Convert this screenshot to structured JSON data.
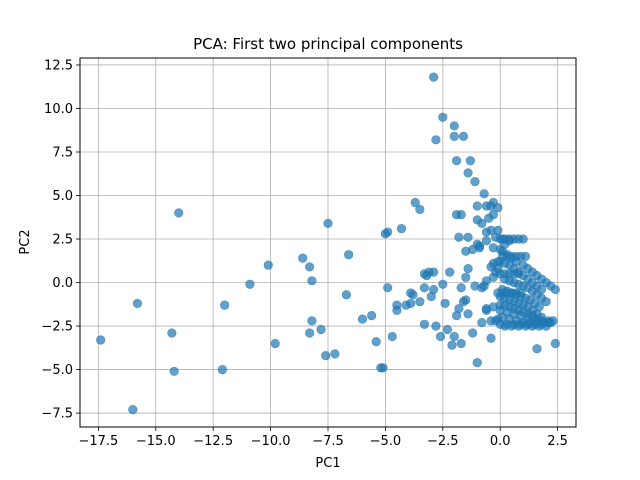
{
  "chart_data": {
    "type": "scatter",
    "title": "PCA: First two principal components",
    "xlabel": "PC1",
    "ylabel": "PC2",
    "xlim": [
      -18.3,
      3.3
    ],
    "ylim": [
      -8.3,
      12.9
    ],
    "xticks": [
      -17.5,
      -15.0,
      -12.5,
      -10.0,
      -7.5,
      -5.0,
      -2.5,
      0.0,
      2.5
    ],
    "xtick_labels": [
      "−17.5",
      "−15.0",
      "−12.5",
      "−10.0",
      "−7.5",
      "−5.0",
      "−2.5",
      "0.0",
      "2.5"
    ],
    "yticks": [
      -7.5,
      -5.0,
      -2.5,
      0.0,
      2.5,
      5.0,
      7.5,
      10.0,
      12.5
    ],
    "ytick_labels": [
      "−7.5",
      "−5.0",
      "−2.5",
      "0.0",
      "2.5",
      "5.0",
      "7.5",
      "10.0",
      "12.5"
    ],
    "grid": true,
    "marker_color": "#1f77b4",
    "marker_alpha": 0.7,
    "series": [
      {
        "x": [
          -17.4,
          -16.0,
          -15.8,
          -14.3,
          -14.2,
          -14.0,
          -12.0,
          -12.1,
          -10.9,
          -9.8,
          -10.1,
          -8.6,
          -8.3,
          -8.2,
          -8.3,
          -8.2,
          -7.8,
          -7.6,
          -7.5,
          -7.2,
          -6.7,
          -6.6,
          -6.0,
          -5.6,
          -5.4,
          -5.2,
          -5.1,
          -5.0,
          -4.9,
          -4.7,
          -4.5,
          -4.3,
          -4.1,
          -3.9,
          -3.7,
          -3.5,
          -3.3,
          -3.1,
          -3.0,
          -2.8,
          -2.6,
          -2.5,
          -2.3,
          -2.1,
          -2.0,
          -1.9,
          -1.7,
          -1.5,
          -1.4,
          -1.2,
          -1.0,
          -0.8,
          -0.6,
          -0.4,
          -0.2,
          -2.9,
          -2.5,
          -2.8,
          -3.3,
          -2.0,
          -2.0,
          -1.9,
          -1.6,
          -1.3,
          -1.8,
          -1.9,
          -1.7,
          -1.4,
          -1.4,
          -1.1,
          -0.9,
          -0.7,
          -0.6,
          -1.0,
          -0.3,
          -4.9,
          -3.2,
          -2.9,
          -2.2,
          -1.7,
          -1.5,
          -1.2,
          -1.0,
          -0.9,
          -0.6,
          -0.4,
          -0.3,
          -0.1,
          -3.3,
          -2.9,
          -3.9,
          -3.8,
          -4.5,
          -3.5,
          -2.4,
          -1.8,
          -1.6,
          -1.5,
          -1.4,
          -1.1,
          -0.8,
          -0.7,
          -0.6,
          -0.3,
          -0.2,
          -0.1,
          -0.8,
          -0.5,
          -0.3,
          -1.0,
          -0.4,
          -0.1,
          -0.4,
          -0.1,
          -0.6,
          -0.2,
          0.1,
          0.4,
          0.2,
          -0.3,
          0.0,
          0.1,
          0.3,
          0.5,
          0.7,
          1.0,
          1.2,
          1.4,
          1.6,
          1.8,
          2.0,
          2.2,
          2.4,
          0.0,
          0.2,
          0.4,
          0.6,
          0.8,
          1.0,
          1.2,
          1.4,
          1.6,
          1.8,
          0.2,
          0.4,
          0.6,
          0.8,
          1.0,
          1.2,
          1.4,
          1.6,
          1.8,
          2.0,
          0.1,
          0.3,
          0.5,
          0.7,
          0.9,
          1.1,
          1.3,
          1.5,
          1.7,
          0.0,
          0.2,
          0.4,
          0.6,
          0.8,
          1.0,
          1.2,
          1.4,
          1.6,
          1.8,
          0.2,
          0.4,
          0.6,
          0.8,
          1.0,
          1.2,
          1.4,
          1.6,
          0.0,
          0.3,
          0.6,
          0.9,
          1.2,
          1.5,
          1.8,
          2.1,
          0.1,
          0.4,
          0.7,
          1.0,
          1.3,
          1.6,
          1.9,
          2.2,
          0.0,
          0.3,
          0.6,
          0.9,
          1.2,
          1.5,
          1.8,
          2.1,
          2.3,
          0.2,
          0.5,
          0.8,
          1.1,
          1.4,
          1.7,
          2.0,
          0.0,
          0.2,
          0.4,
          0.6,
          0.8,
          0.1,
          0.3,
          0.5,
          0.7,
          0.9,
          1.1,
          0.0,
          0.2,
          0.4,
          0.6,
          0.8,
          1.0,
          -0.1,
          0.1,
          0.3,
          0.5,
          0.7,
          0.9,
          1.6,
          2.4,
          -0.6,
          -0.3,
          0.0,
          -0.4,
          -0.1
        ],
        "y": [
          -3.3,
          -7.3,
          -1.2,
          -2.9,
          -5.1,
          4.0,
          -1.3,
          -5.0,
          -0.1,
          -3.5,
          1.0,
          1.4,
          0.9,
          -2.2,
          -2.9,
          0.1,
          -2.7,
          -4.2,
          3.4,
          -4.1,
          -0.7,
          1.6,
          -2.1,
          -1.9,
          -3.4,
          -4.9,
          -4.9,
          2.8,
          2.9,
          -3.1,
          -1.6,
          3.1,
          -1.3,
          -1.2,
          4.6,
          4.2,
          -2.4,
          0.6,
          -0.8,
          -2.5,
          -3.1,
          -0.1,
          -2.7,
          -3.6,
          -3.1,
          -1.9,
          -3.5,
          -1.0,
          -1.8,
          -2.9,
          -4.6,
          -2.3,
          -1.6,
          -3.2,
          -2.2,
          11.8,
          9.5,
          8.2,
          0.5,
          8.4,
          9.0,
          7.0,
          8.4,
          7.0,
          2.6,
          3.9,
          3.9,
          6.3,
          2.6,
          5.8,
          2.0,
          5.1,
          4.4,
          3.6,
          4.6,
          -0.3,
          0.4,
          0.6,
          0.6,
          -0.3,
          1.8,
          1.9,
          2.2,
          2.1,
          2.4,
          0.9,
          1.1,
          1.2,
          -0.3,
          -0.4,
          -0.6,
          -0.7,
          -1.3,
          -1.1,
          -1.2,
          -1.5,
          -1.1,
          0.3,
          0.8,
          -0.2,
          -0.3,
          -0.2,
          0.1,
          0.3,
          0.6,
          0.8,
          3.4,
          3.7,
          3.9,
          4.4,
          4.4,
          4.3,
          3.0,
          3.0,
          2.9,
          2.6,
          2.5,
          2.4,
          2.2,
          2.0,
          1.9,
          1.8,
          1.6,
          1.4,
          1.2,
          1.0,
          0.8,
          0.6,
          0.4,
          0.2,
          0.0,
          -0.2,
          -0.4,
          1.2,
          1.1,
          1.0,
          0.8,
          0.6,
          0.4,
          0.2,
          0.0,
          -0.2,
          -0.4,
          0.2,
          0.1,
          0.0,
          -0.1,
          -0.2,
          -0.3,
          -0.5,
          -0.7,
          -0.9,
          -1.1,
          -0.4,
          -0.5,
          -0.6,
          -0.7,
          -0.8,
          -0.9,
          -1.0,
          -1.2,
          -1.4,
          -0.8,
          -0.9,
          -1.0,
          -1.1,
          -1.2,
          -1.3,
          -1.4,
          -1.6,
          -1.8,
          -2.0,
          -1.3,
          -1.4,
          -1.5,
          -1.6,
          -1.7,
          -1.8,
          -1.9,
          -2.1,
          -1.6,
          -1.7,
          -1.8,
          -1.9,
          -2.0,
          -2.1,
          -2.2,
          -2.3,
          -2.0,
          -2.1,
          -2.2,
          -2.3,
          -2.3,
          -2.3,
          -2.3,
          -2.3,
          -2.4,
          -2.4,
          -2.4,
          -2.4,
          -2.4,
          -2.4,
          -2.4,
          -2.2,
          -2.2,
          -2.5,
          -2.5,
          -2.5,
          -2.5,
          -2.5,
          -2.5,
          -2.5,
          0.5,
          0.5,
          0.5,
          0.5,
          0.5,
          1.5,
          1.5,
          1.5,
          1.5,
          1.5,
          1.5,
          2.5,
          2.5,
          2.5,
          2.5,
          2.5,
          2.5,
          -0.6,
          -0.6,
          -0.6,
          -0.6,
          -0.6,
          -0.6,
          -3.8,
          -3.5,
          -1.5,
          -1.4,
          -1.3,
          -2.2,
          -2.1
        ]
      }
    ]
  }
}
